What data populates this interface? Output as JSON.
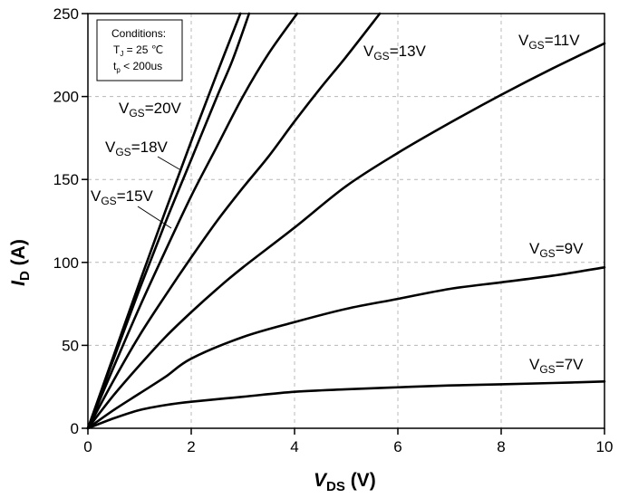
{
  "chart_data": {
    "type": "line",
    "xlabel": {
      "main": "V",
      "sub": "DS",
      "unit": " (V)"
    },
    "ylabel": {
      "main": "I",
      "sub": "D",
      "unit": " (A)"
    },
    "xlim": [
      0,
      10
    ],
    "ylim": [
      0,
      250
    ],
    "xticks": [
      0,
      2,
      4,
      6,
      8,
      10
    ],
    "yticks": [
      0,
      50,
      100,
      150,
      200,
      250
    ],
    "grid": true,
    "conditions": {
      "title": "Conditions:",
      "line1": {
        "main": "T",
        "sub": "J",
        "rest": " = 25 ℃"
      },
      "line2": {
        "main": "t",
        "sub": "p",
        "rest": " < 200us"
      }
    },
    "series": [
      {
        "id": "vgs20",
        "name": {
          "main": "V",
          "sub": "GS",
          "rest": "=20V"
        },
        "x": [
          0,
          0.5,
          1,
          1.5,
          2,
          2.5,
          2.95
        ],
        "y": [
          0,
          44,
          88,
          131,
          173,
          214,
          250
        ]
      },
      {
        "id": "vgs18",
        "name": {
          "main": "V",
          "sub": "GS",
          "rest": "=18V"
        },
        "x": [
          0,
          0.5,
          1,
          1.5,
          2,
          2.5,
          2.8,
          3.12
        ],
        "y": [
          0,
          42,
          84,
          124,
          162,
          200,
          222,
          250
        ]
      },
      {
        "id": "vgs15",
        "name": {
          "main": "V",
          "sub": "GS",
          "rest": "=15V"
        },
        "x": [
          0,
          0.5,
          1,
          1.5,
          2,
          2.5,
          3,
          3.5,
          4.05
        ],
        "y": [
          0,
          37,
          73,
          107,
          140,
          170,
          200,
          226,
          250
        ]
      },
      {
        "id": "vgs13",
        "name": {
          "main": "V",
          "sub": "GS",
          "rest": "=13V"
        },
        "x": [
          0,
          0.5,
          1,
          1.5,
          2,
          2.5,
          3,
          3.5,
          4,
          4.5,
          5,
          5.65
        ],
        "y": [
          0,
          29,
          56,
          80,
          103,
          125,
          145,
          164,
          185,
          205,
          224,
          250
        ]
      },
      {
        "id": "vgs11",
        "name": {
          "main": "V",
          "sub": "GS",
          "rest": "=11V"
        },
        "x": [
          0,
          0.5,
          1,
          1.5,
          2,
          2.5,
          3,
          4,
          5,
          6,
          7,
          8,
          9,
          10
        ],
        "y": [
          0,
          20,
          38,
          55,
          70,
          84,
          97,
          121,
          146,
          166,
          184,
          201,
          217,
          232
        ]
      },
      {
        "id": "vgs9",
        "name": {
          "main": "V",
          "sub": "GS",
          "rest": "=9V"
        },
        "x": [
          0,
          0.5,
          1,
          1.5,
          2,
          3,
          4,
          5,
          6,
          7,
          8,
          9,
          10
        ],
        "y": [
          0,
          11,
          21,
          31,
          42,
          55,
          64,
          72,
          78,
          84,
          88,
          92,
          97
        ]
      },
      {
        "id": "vgs7",
        "name": {
          "main": "V",
          "sub": "GS",
          "rest": "=7V"
        },
        "x": [
          0,
          0.5,
          1,
          1.5,
          2,
          3,
          4,
          5,
          6,
          7,
          8,
          9,
          10
        ],
        "y": [
          0,
          6,
          11,
          14,
          16,
          19,
          22,
          23.5,
          24.7,
          25.8,
          26.5,
          27.3,
          28.2
        ]
      }
    ]
  }
}
